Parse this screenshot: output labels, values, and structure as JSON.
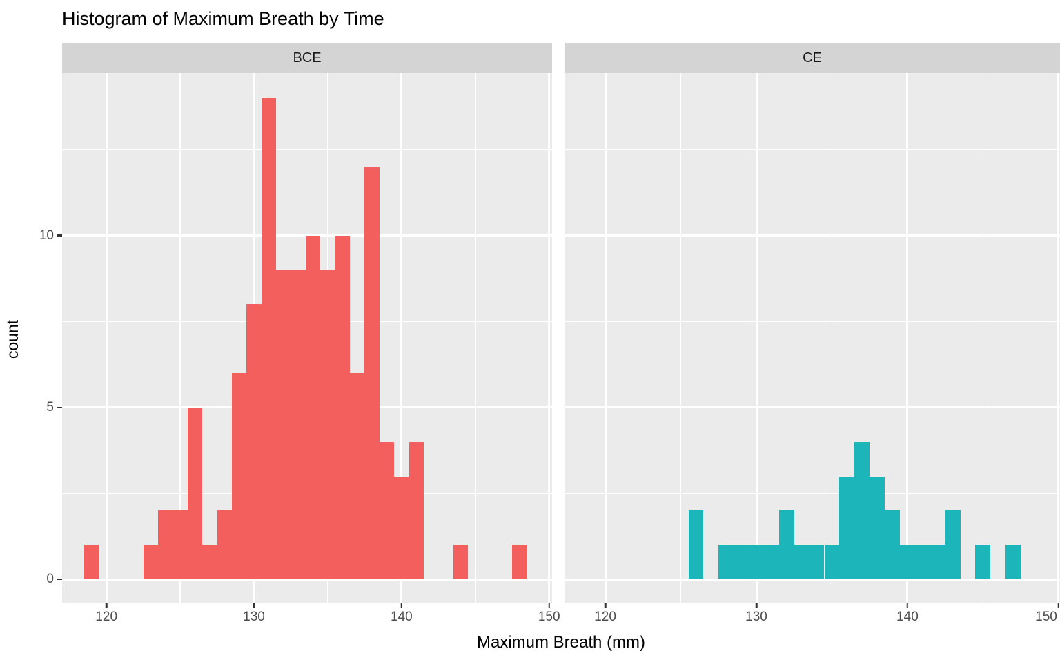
{
  "title": "Histogram of Maximum Breath by Time",
  "axes": {
    "x_title": "Maximum Breath (mm)",
    "y_title": "count",
    "x_ticks": [
      120,
      130,
      140,
      150
    ],
    "y_ticks": [
      0,
      5,
      10
    ],
    "x_minor_gridlines": [
      125,
      135,
      145
    ],
    "y_minor_gridlines": [
      2.5,
      7.5,
      12.5
    ],
    "ylim": [
      -0.7,
      14.73
    ]
  },
  "colors": {
    "bce_fill": "#F25F5C",
    "ce_fill": "#1BB5BA",
    "panel_background": "#EBEBEB",
    "strip_background": "#D4D4D4",
    "gridline": "#FFFFFF",
    "tick_mark": "#333333",
    "tick_label": "#4D4D4D"
  },
  "chart_data": [
    {
      "type": "bar",
      "facet": "BCE",
      "binwidth": 1,
      "bins": [
        119,
        123,
        124,
        125,
        126,
        127,
        128,
        129,
        130,
        131,
        132,
        133,
        134,
        135,
        136,
        137,
        138,
        139,
        140,
        141,
        144,
        148
      ],
      "counts": [
        1,
        1,
        2,
        2,
        5,
        1,
        2,
        6,
        8,
        14,
        9,
        9,
        10,
        9,
        10,
        6,
        12,
        4,
        3,
        4,
        1,
        1
      ],
      "xlim": [
        117.0,
        150.2
      ],
      "x_ticks": [
        120,
        130,
        140,
        150
      ],
      "y_ticks": [
        0,
        5,
        10
      ]
    },
    {
      "type": "bar",
      "facet": "CE",
      "binwidth": 1,
      "bins": [
        126,
        128,
        129,
        130,
        131,
        132,
        133,
        134,
        135,
        136,
        137,
        138,
        139,
        140,
        141,
        142,
        143,
        145,
        147
      ],
      "counts": [
        2,
        1,
        1,
        1,
        1,
        2,
        1,
        1,
        1,
        3,
        4,
        3,
        2,
        1,
        1,
        1,
        2,
        1,
        1
      ],
      "xlim": [
        117.3,
        150.1
      ],
      "x_ticks": [
        120,
        130,
        140,
        150
      ],
      "y_ticks": [
        0,
        5,
        10
      ]
    }
  ]
}
